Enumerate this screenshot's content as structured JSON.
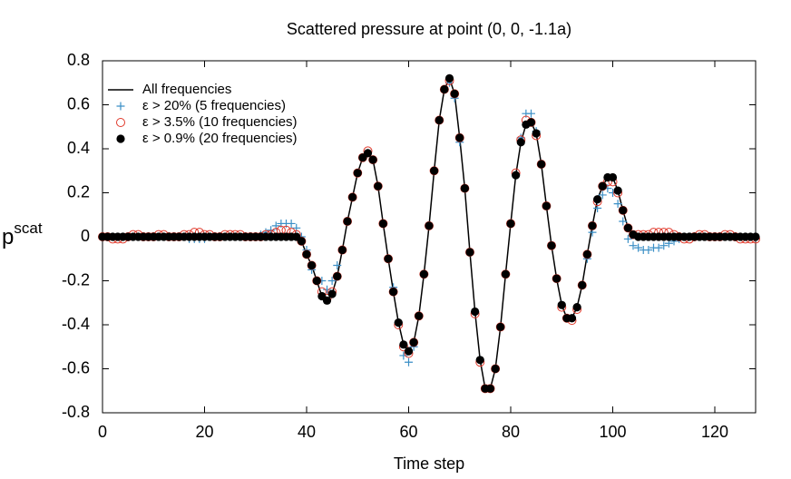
{
  "chart_data": {
    "type": "scatter",
    "title": "Scattered pressure at point (0, 0, -1.1a)",
    "x_label": "Time step",
    "y_label": {
      "base": "p",
      "sup": "scat"
    },
    "xlim": [
      0,
      128
    ],
    "ylim": [
      -0.8,
      0.8
    ],
    "xticks": [
      0,
      20,
      40,
      60,
      80,
      100,
      120
    ],
    "yticks": [
      -0.8,
      -0.6,
      -0.4,
      -0.2,
      0,
      0.2,
      0.4,
      0.6,
      0.8
    ],
    "legend": "upper-left",
    "x": [
      0,
      1,
      2,
      3,
      4,
      5,
      6,
      7,
      8,
      9,
      10,
      11,
      12,
      13,
      14,
      15,
      16,
      17,
      18,
      19,
      20,
      21,
      22,
      23,
      24,
      25,
      26,
      27,
      28,
      29,
      30,
      31,
      32,
      33,
      34,
      35,
      36,
      37,
      38,
      39,
      40,
      41,
      42,
      43,
      44,
      45,
      46,
      47,
      48,
      49,
      50,
      51,
      52,
      53,
      54,
      55,
      56,
      57,
      58,
      59,
      60,
      61,
      62,
      63,
      64,
      65,
      66,
      67,
      68,
      69,
      70,
      71,
      72,
      73,
      74,
      75,
      76,
      77,
      78,
      79,
      80,
      81,
      82,
      83,
      84,
      85,
      86,
      87,
      88,
      89,
      90,
      91,
      92,
      93,
      94,
      95,
      96,
      97,
      98,
      99,
      100,
      101,
      102,
      103,
      104,
      105,
      106,
      107,
      108,
      109,
      110,
      111,
      112,
      113,
      114,
      115,
      116,
      117,
      118,
      119,
      120,
      121,
      122,
      123,
      124,
      125,
      126,
      127,
      128
    ],
    "series": [
      {
        "name": "All frequencies",
        "marker": "line",
        "color": "#000000",
        "values": [
          0,
          0,
          0,
          0,
          0,
          0,
          0,
          0,
          0,
          0,
          0,
          0,
          0,
          0,
          0,
          0,
          0,
          0,
          0,
          0,
          0,
          0,
          0,
          0,
          0,
          0,
          0,
          0,
          0,
          0,
          0,
          0,
          0,
          0,
          0,
          0,
          0,
          0,
          0,
          -0.02,
          -0.08,
          -0.13,
          -0.2,
          -0.27,
          -0.29,
          -0.26,
          -0.18,
          -0.06,
          0.07,
          0.18,
          0.29,
          0.36,
          0.38,
          0.35,
          0.23,
          0.06,
          -0.1,
          -0.25,
          -0.39,
          -0.49,
          -0.52,
          -0.48,
          -0.36,
          -0.17,
          0.05,
          0.3,
          0.53,
          0.67,
          0.72,
          0.65,
          0.45,
          0.22,
          -0.07,
          -0.34,
          -0.56,
          -0.69,
          -0.69,
          -0.6,
          -0.41,
          -0.17,
          0.06,
          0.28,
          0.43,
          0.51,
          0.52,
          0.47,
          0.33,
          0.14,
          -0.04,
          -0.19,
          -0.31,
          -0.37,
          -0.37,
          -0.32,
          -0.22,
          -0.08,
          0.05,
          0.17,
          0.23,
          0.27,
          0.27,
          0.21,
          0.12,
          0.04,
          0.01,
          0,
          0,
          0,
          0,
          0,
          0,
          0,
          0,
          0,
          0,
          0,
          0,
          0,
          0,
          0,
          0,
          0,
          0,
          0,
          0,
          0,
          0,
          0,
          0
        ]
      },
      {
        "name": "ε > 20% (5 frequencies)",
        "marker": "plus",
        "color": "#3b8fc6",
        "values": [
          0,
          0,
          0,
          0,
          0,
          0,
          0,
          0,
          0,
          0,
          0,
          0,
          0,
          0,
          0,
          0,
          0,
          -0.01,
          -0.01,
          -0.01,
          -0.01,
          0,
          0,
          0,
          0,
          0,
          0,
          0,
          0,
          0,
          0,
          0.01,
          0.02,
          0.03,
          0.05,
          0.06,
          0.06,
          0.06,
          0.04,
          0,
          -0.06,
          -0.15,
          -0.2,
          -0.2,
          -0.24,
          -0.2,
          -0.13,
          -0.06,
          0.07,
          0.18,
          0.29,
          0.36,
          0.38,
          0.35,
          0.23,
          0.06,
          -0.1,
          -0.23,
          -0.39,
          -0.54,
          -0.57,
          -0.5,
          -0.36,
          -0.17,
          0.05,
          0.3,
          0.53,
          0.67,
          0.7,
          0.63,
          0.43,
          0.22,
          -0.07,
          -0.34,
          -0.56,
          -0.69,
          -0.69,
          -0.6,
          -0.41,
          -0.17,
          0.06,
          0.28,
          0.45,
          0.56,
          0.56,
          0.48,
          0.33,
          0.14,
          -0.04,
          -0.19,
          -0.31,
          -0.37,
          -0.37,
          -0.32,
          -0.22,
          -0.1,
          0.02,
          0.13,
          0.19,
          0.22,
          0.2,
          0.15,
          0.07,
          -0.01,
          -0.04,
          -0.05,
          -0.06,
          -0.06,
          -0.05,
          -0.05,
          -0.04,
          -0.03,
          -0.02,
          -0.01,
          0,
          0,
          0,
          0,
          0,
          0,
          0,
          0,
          0,
          0,
          0,
          0,
          0,
          0,
          0
        ]
      },
      {
        "name": "ε > 3.5% (10 frequencies)",
        "marker": "circle",
        "color": "#e0392b",
        "values": [
          0,
          0,
          -0.01,
          -0.01,
          -0.01,
          0,
          0.01,
          0.01,
          0,
          0,
          0,
          0.01,
          0.01,
          0,
          0,
          0,
          0.01,
          0.01,
          0.02,
          0.02,
          0.01,
          0.01,
          0,
          0,
          0.01,
          0.01,
          0.01,
          0.01,
          0,
          0,
          0,
          0,
          0.01,
          0.01,
          0.02,
          0.03,
          0.03,
          0.02,
          0.01,
          -0.02,
          -0.08,
          -0.13,
          -0.2,
          -0.25,
          -0.28,
          -0.25,
          -0.18,
          -0.06,
          0.07,
          0.18,
          0.29,
          0.36,
          0.39,
          0.35,
          0.23,
          0.06,
          -0.1,
          -0.25,
          -0.4,
          -0.5,
          -0.53,
          -0.48,
          -0.36,
          -0.17,
          0.05,
          0.3,
          0.53,
          0.67,
          0.71,
          0.65,
          0.45,
          0.22,
          -0.07,
          -0.35,
          -0.57,
          -0.69,
          -0.69,
          -0.6,
          -0.41,
          -0.17,
          0.06,
          0.29,
          0.44,
          0.53,
          0.52,
          0.46,
          0.33,
          0.14,
          -0.04,
          -0.19,
          -0.32,
          -0.37,
          -0.38,
          -0.33,
          -0.22,
          -0.08,
          0.05,
          0.16,
          0.23,
          0.25,
          0.25,
          0.2,
          0.12,
          0.04,
          0.01,
          0.01,
          0.01,
          0.01,
          0.02,
          0.02,
          0.02,
          0.02,
          0.01,
          0,
          -0.01,
          -0.01,
          0,
          0.01,
          0.01,
          0,
          0,
          0,
          0.01,
          0.01,
          0,
          -0.01,
          -0.01,
          -0.01,
          -0.01
        ]
      },
      {
        "name": "ε > 0.9% (20 frequencies)",
        "marker": "dot",
        "color": "#000000",
        "values": [
          0,
          0,
          0,
          0,
          0,
          0,
          0,
          0,
          0,
          0,
          0,
          0,
          0,
          0,
          0,
          0,
          0,
          0,
          0,
          0,
          0,
          0,
          0,
          0,
          0,
          0,
          0,
          0,
          0,
          0,
          0,
          0,
          0,
          0,
          0,
          0,
          0,
          0,
          0,
          -0.02,
          -0.08,
          -0.13,
          -0.2,
          -0.27,
          -0.29,
          -0.26,
          -0.18,
          -0.06,
          0.07,
          0.18,
          0.29,
          0.36,
          0.38,
          0.35,
          0.23,
          0.06,
          -0.1,
          -0.25,
          -0.39,
          -0.49,
          -0.52,
          -0.48,
          -0.36,
          -0.17,
          0.05,
          0.3,
          0.53,
          0.67,
          0.72,
          0.65,
          0.45,
          0.22,
          -0.07,
          -0.34,
          -0.56,
          -0.69,
          -0.69,
          -0.6,
          -0.41,
          -0.17,
          0.06,
          0.28,
          0.43,
          0.51,
          0.52,
          0.47,
          0.33,
          0.14,
          -0.04,
          -0.19,
          -0.31,
          -0.37,
          -0.37,
          -0.32,
          -0.22,
          -0.08,
          0.05,
          0.17,
          0.23,
          0.27,
          0.27,
          0.21,
          0.12,
          0.04,
          0.01,
          0,
          0,
          0,
          0,
          0,
          0,
          0,
          0,
          0,
          0,
          0,
          0,
          0,
          0,
          0,
          0,
          0,
          0,
          0,
          0,
          0,
          0,
          0,
          0
        ]
      }
    ]
  }
}
